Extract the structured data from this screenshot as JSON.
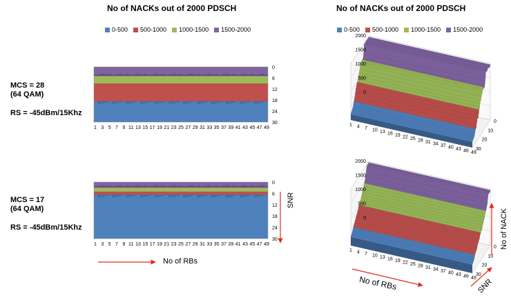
{
  "titles": {
    "left": "No of NACKs out of 2000 PDSCH",
    "right": "No of NACKs out of 2000 PDSCH"
  },
  "legend": [
    {
      "label": "0-500",
      "color": "#4f81bd"
    },
    {
      "label": "500-1000",
      "color": "#c0504d"
    },
    {
      "label": "1000-1500",
      "color": "#9bbb59"
    },
    {
      "label": "1500-2000",
      "color": "#8064a2"
    }
  ],
  "rows": [
    {
      "mcs": "MCS = 28",
      "qam": "(64 QAM)",
      "rs": "RS = -45dBm/15Khz"
    },
    {
      "mcs": "MCS = 17",
      "qam": "(64 QAM)",
      "rs": "RS = -45dBm/15Khz"
    }
  ],
  "annotations": {
    "snr": "SNR",
    "rbs_bottom": "No of RBs",
    "rbs_3d": "No of RBs",
    "nack": "No of NACK",
    "snr_3d": "SNR"
  },
  "chart_data": [
    {
      "type": "heatmap",
      "title": "No of NACKs out of 2000 PDSCH",
      "x_ticks": [
        "1",
        "3",
        "5",
        "7",
        "9",
        "11",
        "13",
        "15",
        "17",
        "19",
        "21",
        "23",
        "25",
        "27",
        "29",
        "31",
        "33",
        "35",
        "37",
        "39",
        "41",
        "43",
        "45",
        "47",
        "49"
      ],
      "y_ticks": [
        "0",
        "6",
        "12",
        "18",
        "24",
        "30"
      ],
      "band_boundaries_snr": [
        5,
        9,
        19
      ],
      "legend": [
        "0-500",
        "500-1000",
        "1000-1500",
        "1500-2000"
      ]
    },
    {
      "type": "area",
      "title": "No of NACKs out of 2000 PDSCH",
      "x_ticks": [
        "1",
        "4",
        "7",
        "10",
        "13",
        "16",
        "19",
        "22",
        "25",
        "28",
        "31",
        "34",
        "37",
        "40",
        "43",
        "46",
        "49"
      ],
      "y_ticks": [
        "0",
        "500",
        "1000",
        "1500",
        "2000"
      ],
      "z_ticks": [
        "0",
        "10",
        "20",
        "30"
      ],
      "legend": [
        "0-500",
        "500-1000",
        "1000-1500",
        "1500-2000"
      ]
    },
    {
      "type": "heatmap",
      "title": "",
      "x_ticks": [
        "1",
        "3",
        "5",
        "7",
        "9",
        "11",
        "13",
        "15",
        "17",
        "19",
        "21",
        "23",
        "25",
        "27",
        "29",
        "31",
        "33",
        "35",
        "37",
        "39",
        "41",
        "43",
        "45",
        "47",
        "49"
      ],
      "y_ticks": [
        "0",
        "6",
        "12",
        "18",
        "24",
        "30"
      ],
      "band_boundaries_snr": [
        3,
        5,
        7
      ],
      "legend": [
        "0-500",
        "500-1000",
        "1000-1500",
        "1500-2000"
      ]
    },
    {
      "type": "area",
      "title": "",
      "x_ticks": [
        "1",
        "4",
        "7",
        "10",
        "13",
        "16",
        "19",
        "22",
        "25",
        "28",
        "31",
        "34",
        "37",
        "40",
        "43",
        "46",
        "49"
      ],
      "y_ticks": [
        "0",
        "500",
        "1000",
        "1500",
        "2000"
      ],
      "z_ticks": [
        "0",
        "10",
        "20",
        "30"
      ],
      "legend": [
        "0-500",
        "500-1000",
        "1000-1500",
        "1500-2000"
      ]
    }
  ]
}
